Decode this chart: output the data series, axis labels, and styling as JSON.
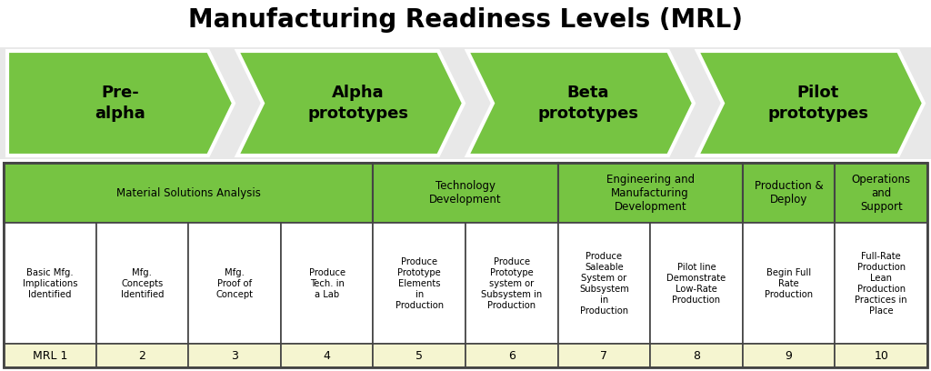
{
  "title": "Manufacturing Readiness Levels (MRL)",
  "title_fontsize": 20,
  "arrow_labels": [
    "Pre-\nalpha",
    "Alpha\nprototypes",
    "Beta\nprototypes",
    "Pilot\nprototypes"
  ],
  "arrow_color": "#76c442",
  "header_row": [
    "Material Solutions Analysis",
    "Technology\nDevelopment",
    "Engineering and\nManufacturing\nDevelopment",
    "Production &\nDeploy",
    "Operations\nand\nSupport"
  ],
  "header_spans": [
    4,
    2,
    2,
    1,
    1
  ],
  "header_bg": "#76c442",
  "header_fontsize": 8.5,
  "body_row": [
    "Basic Mfg.\nImplications\nIdentified",
    "Mfg.\nConcepts\nIdentified",
    "Mfg.\nProof of\nConcept",
    "Produce\nTech. in\na Lab",
    "Produce\nPrototype\nElements\nin\nProduction",
    "Produce\nPrototype\nsystem or\nSubsystem in\nProduction",
    "Produce\nSaleable\nSystem or\nSubsystem\nin\nProduction",
    "Pilot line\nDemonstrate\nLow-Rate\nProduction",
    "Begin Full\nRate\nProduction",
    "Full-Rate\nProduction\nLean\nProduction\nPractices in\nPlace"
  ],
  "number_row": [
    "MRL 1",
    "2",
    "3",
    "4",
    "5",
    "6",
    "7",
    "8",
    "9",
    "10"
  ],
  "body_bg": "#ffffff",
  "number_bg": "#f5f5d0",
  "cell_fontsize": 7.2,
  "number_fontsize": 9,
  "border_color": "#444444",
  "bg_color": "#ffffff",
  "arrow_section_bg": "#e8e8e8"
}
